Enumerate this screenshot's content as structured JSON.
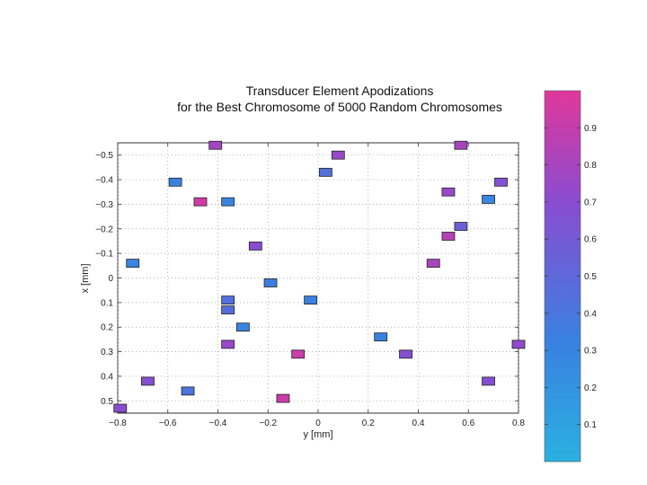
{
  "chart_data": {
    "type": "scatter",
    "title_lines": [
      "Transducer Element Apodizations",
      "for the Best Chromosome of 5000 Random Chromosomes"
    ],
    "xlabel": "y [mm]",
    "ylabel": "x [mm]",
    "xlim": [
      -0.8,
      0.8
    ],
    "ylim": [
      -0.55,
      0.55
    ],
    "y_reversed": true,
    "grid": true,
    "xticks": [
      -0.8,
      -0.6,
      -0.4,
      -0.2,
      0,
      0.2,
      0.4,
      0.6,
      0.8
    ],
    "xtick_labels": [
      "−0.8",
      "−0.6",
      "−0.4",
      "−0.2",
      "0",
      "0.2",
      "0.4",
      "0.6",
      "0.8"
    ],
    "yticks": [
      -0.5,
      -0.4,
      -0.3,
      -0.2,
      -0.1,
      0,
      0.1,
      0.2,
      0.3,
      0.4,
      0.5
    ],
    "ytick_labels": [
      "−0.5",
      "−0.4",
      "−0.3",
      "−0.2",
      "−0.1",
      "0",
      "0.1",
      "0.2",
      "0.3",
      "0.4",
      "0.5"
    ],
    "colorbar": {
      "range": [
        0,
        1
      ],
      "ticks": [
        0.1,
        0.2,
        0.3,
        0.4,
        0.5,
        0.6,
        0.7,
        0.8,
        0.9
      ],
      "tick_labels": [
        "0.1",
        "0.2",
        "0.3",
        "0.4",
        "0.5",
        "0.6",
        "0.7",
        "0.8",
        "0.9"
      ],
      "colors": [
        "#2ab0e0",
        "#3a80e0",
        "#8a4cd0",
        "#e0389a"
      ]
    },
    "points": [
      {
        "x": -0.41,
        "y": -0.54,
        "v": 0.78
      },
      {
        "x": 0.08,
        "y": -0.5,
        "v": 0.75
      },
      {
        "x": 0.57,
        "y": -0.54,
        "v": 0.8
      },
      {
        "x": 0.03,
        "y": -0.43,
        "v": 0.45
      },
      {
        "x": -0.57,
        "y": -0.39,
        "v": 0.32
      },
      {
        "x": 0.73,
        "y": -0.39,
        "v": 0.65
      },
      {
        "x": 0.52,
        "y": -0.35,
        "v": 0.75
      },
      {
        "x": -0.47,
        "y": -0.31,
        "v": 0.95
      },
      {
        "x": -0.36,
        "y": -0.31,
        "v": 0.3
      },
      {
        "x": 0.68,
        "y": -0.32,
        "v": 0.28
      },
      {
        "x": 0.57,
        "y": -0.21,
        "v": 0.55
      },
      {
        "x": 0.52,
        "y": -0.17,
        "v": 0.85
      },
      {
        "x": -0.25,
        "y": -0.13,
        "v": 0.7
      },
      {
        "x": -0.74,
        "y": -0.06,
        "v": 0.3
      },
      {
        "x": 0.46,
        "y": -0.06,
        "v": 0.8
      },
      {
        "x": -0.19,
        "y": 0.02,
        "v": 0.35
      },
      {
        "x": -0.03,
        "y": 0.09,
        "v": 0.33
      },
      {
        "x": -0.36,
        "y": 0.09,
        "v": 0.45
      },
      {
        "x": -0.36,
        "y": 0.13,
        "v": 0.45
      },
      {
        "x": -0.3,
        "y": 0.2,
        "v": 0.3
      },
      {
        "x": 0.25,
        "y": 0.24,
        "v": 0.32
      },
      {
        "x": -0.36,
        "y": 0.27,
        "v": 0.75
      },
      {
        "x": 0.8,
        "y": 0.27,
        "v": 0.72
      },
      {
        "x": -0.08,
        "y": 0.31,
        "v": 0.92
      },
      {
        "x": 0.35,
        "y": 0.31,
        "v": 0.68
      },
      {
        "x": -0.68,
        "y": 0.42,
        "v": 0.68
      },
      {
        "x": 0.68,
        "y": 0.42,
        "v": 0.68
      },
      {
        "x": -0.52,
        "y": 0.46,
        "v": 0.42
      },
      {
        "x": -0.14,
        "y": 0.49,
        "v": 0.92
      },
      {
        "x": -0.79,
        "y": 0.53,
        "v": 0.7
      }
    ]
  }
}
